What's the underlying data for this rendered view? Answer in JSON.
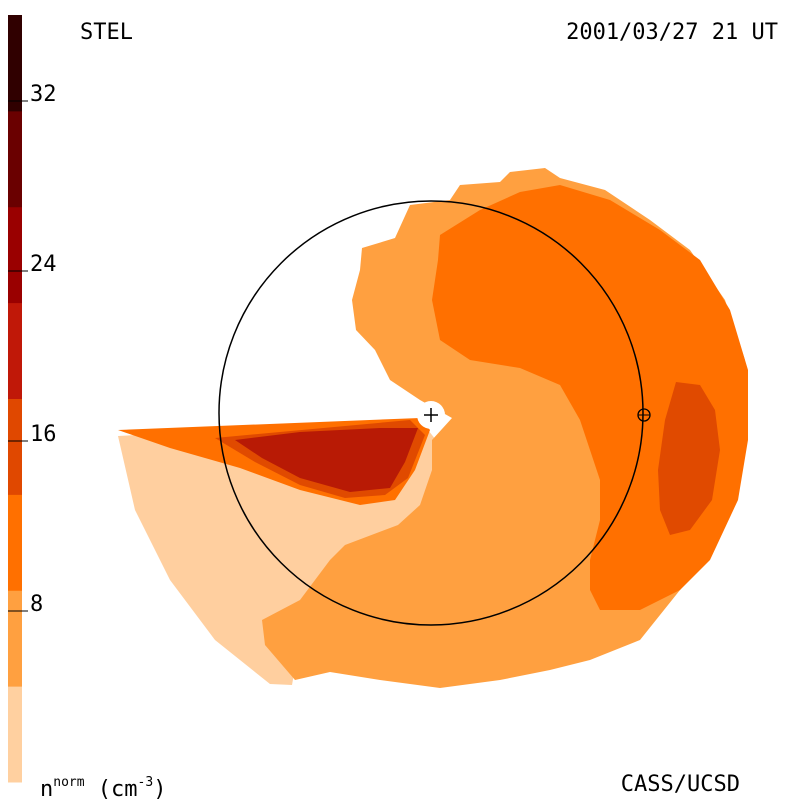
{
  "header": {
    "left_label": "STEL",
    "right_label": "2001/03/27 21 UT"
  },
  "footer": {
    "credit": "CASS/UCSD",
    "units_base": "n",
    "units_sup": "norm",
    "units_rest": " (cm",
    "units_exp": "-3",
    "units_close": ")"
  },
  "colorbar": {
    "ticks": [
      "32",
      "24",
      "16",
      "8"
    ],
    "bands": [
      "#ffd0a0",
      "#ffa040",
      "#ff7000",
      "#e04800",
      "#c01808",
      "#9a0000",
      "#6a0000",
      "#300000"
    ]
  },
  "colors": {
    "level_1": "#ffcf9f",
    "level_2": "#ffa040",
    "level_3": "#ff7000",
    "level_4": "#e04a00",
    "level_5": "#b81a05",
    "orbit": "#000000"
  }
}
